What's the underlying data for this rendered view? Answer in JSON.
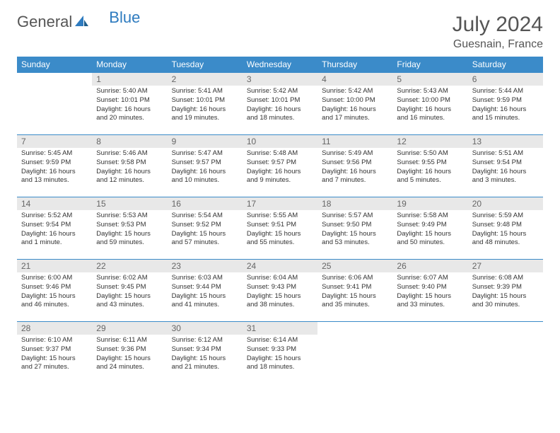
{
  "logo": {
    "part1": "General",
    "part2": "Blue"
  },
  "title": "July 2024",
  "subtitle": "Guesnain, France",
  "colors": {
    "header_bg": "#3b8bc9",
    "header_fg": "#ffffff",
    "daynum_bg": "#e8e8e8",
    "rule": "#3b8bc9",
    "text": "#333333",
    "logo_blue": "#2e7bbf"
  },
  "weekdays": [
    "Sunday",
    "Monday",
    "Tuesday",
    "Wednesday",
    "Thursday",
    "Friday",
    "Saturday"
  ],
  "weeks": [
    [
      {
        "n": "",
        "sunrise": "",
        "sunset": "",
        "daylight": ""
      },
      {
        "n": "1",
        "sunrise": "Sunrise: 5:40 AM",
        "sunset": "Sunset: 10:01 PM",
        "daylight": "Daylight: 16 hours and 20 minutes."
      },
      {
        "n": "2",
        "sunrise": "Sunrise: 5:41 AM",
        "sunset": "Sunset: 10:01 PM",
        "daylight": "Daylight: 16 hours and 19 minutes."
      },
      {
        "n": "3",
        "sunrise": "Sunrise: 5:42 AM",
        "sunset": "Sunset: 10:01 PM",
        "daylight": "Daylight: 16 hours and 18 minutes."
      },
      {
        "n": "4",
        "sunrise": "Sunrise: 5:42 AM",
        "sunset": "Sunset: 10:00 PM",
        "daylight": "Daylight: 16 hours and 17 minutes."
      },
      {
        "n": "5",
        "sunrise": "Sunrise: 5:43 AM",
        "sunset": "Sunset: 10:00 PM",
        "daylight": "Daylight: 16 hours and 16 minutes."
      },
      {
        "n": "6",
        "sunrise": "Sunrise: 5:44 AM",
        "sunset": "Sunset: 9:59 PM",
        "daylight": "Daylight: 16 hours and 15 minutes."
      }
    ],
    [
      {
        "n": "7",
        "sunrise": "Sunrise: 5:45 AM",
        "sunset": "Sunset: 9:59 PM",
        "daylight": "Daylight: 16 hours and 13 minutes."
      },
      {
        "n": "8",
        "sunrise": "Sunrise: 5:46 AM",
        "sunset": "Sunset: 9:58 PM",
        "daylight": "Daylight: 16 hours and 12 minutes."
      },
      {
        "n": "9",
        "sunrise": "Sunrise: 5:47 AM",
        "sunset": "Sunset: 9:57 PM",
        "daylight": "Daylight: 16 hours and 10 minutes."
      },
      {
        "n": "10",
        "sunrise": "Sunrise: 5:48 AM",
        "sunset": "Sunset: 9:57 PM",
        "daylight": "Daylight: 16 hours and 9 minutes."
      },
      {
        "n": "11",
        "sunrise": "Sunrise: 5:49 AM",
        "sunset": "Sunset: 9:56 PM",
        "daylight": "Daylight: 16 hours and 7 minutes."
      },
      {
        "n": "12",
        "sunrise": "Sunrise: 5:50 AM",
        "sunset": "Sunset: 9:55 PM",
        "daylight": "Daylight: 16 hours and 5 minutes."
      },
      {
        "n": "13",
        "sunrise": "Sunrise: 5:51 AM",
        "sunset": "Sunset: 9:54 PM",
        "daylight": "Daylight: 16 hours and 3 minutes."
      }
    ],
    [
      {
        "n": "14",
        "sunrise": "Sunrise: 5:52 AM",
        "sunset": "Sunset: 9:54 PM",
        "daylight": "Daylight: 16 hours and 1 minute."
      },
      {
        "n": "15",
        "sunrise": "Sunrise: 5:53 AM",
        "sunset": "Sunset: 9:53 PM",
        "daylight": "Daylight: 15 hours and 59 minutes."
      },
      {
        "n": "16",
        "sunrise": "Sunrise: 5:54 AM",
        "sunset": "Sunset: 9:52 PM",
        "daylight": "Daylight: 15 hours and 57 minutes."
      },
      {
        "n": "17",
        "sunrise": "Sunrise: 5:55 AM",
        "sunset": "Sunset: 9:51 PM",
        "daylight": "Daylight: 15 hours and 55 minutes."
      },
      {
        "n": "18",
        "sunrise": "Sunrise: 5:57 AM",
        "sunset": "Sunset: 9:50 PM",
        "daylight": "Daylight: 15 hours and 53 minutes."
      },
      {
        "n": "19",
        "sunrise": "Sunrise: 5:58 AM",
        "sunset": "Sunset: 9:49 PM",
        "daylight": "Daylight: 15 hours and 50 minutes."
      },
      {
        "n": "20",
        "sunrise": "Sunrise: 5:59 AM",
        "sunset": "Sunset: 9:48 PM",
        "daylight": "Daylight: 15 hours and 48 minutes."
      }
    ],
    [
      {
        "n": "21",
        "sunrise": "Sunrise: 6:00 AM",
        "sunset": "Sunset: 9:46 PM",
        "daylight": "Daylight: 15 hours and 46 minutes."
      },
      {
        "n": "22",
        "sunrise": "Sunrise: 6:02 AM",
        "sunset": "Sunset: 9:45 PM",
        "daylight": "Daylight: 15 hours and 43 minutes."
      },
      {
        "n": "23",
        "sunrise": "Sunrise: 6:03 AM",
        "sunset": "Sunset: 9:44 PM",
        "daylight": "Daylight: 15 hours and 41 minutes."
      },
      {
        "n": "24",
        "sunrise": "Sunrise: 6:04 AM",
        "sunset": "Sunset: 9:43 PM",
        "daylight": "Daylight: 15 hours and 38 minutes."
      },
      {
        "n": "25",
        "sunrise": "Sunrise: 6:06 AM",
        "sunset": "Sunset: 9:41 PM",
        "daylight": "Daylight: 15 hours and 35 minutes."
      },
      {
        "n": "26",
        "sunrise": "Sunrise: 6:07 AM",
        "sunset": "Sunset: 9:40 PM",
        "daylight": "Daylight: 15 hours and 33 minutes."
      },
      {
        "n": "27",
        "sunrise": "Sunrise: 6:08 AM",
        "sunset": "Sunset: 9:39 PM",
        "daylight": "Daylight: 15 hours and 30 minutes."
      }
    ],
    [
      {
        "n": "28",
        "sunrise": "Sunrise: 6:10 AM",
        "sunset": "Sunset: 9:37 PM",
        "daylight": "Daylight: 15 hours and 27 minutes."
      },
      {
        "n": "29",
        "sunrise": "Sunrise: 6:11 AM",
        "sunset": "Sunset: 9:36 PM",
        "daylight": "Daylight: 15 hours and 24 minutes."
      },
      {
        "n": "30",
        "sunrise": "Sunrise: 6:12 AM",
        "sunset": "Sunset: 9:34 PM",
        "daylight": "Daylight: 15 hours and 21 minutes."
      },
      {
        "n": "31",
        "sunrise": "Sunrise: 6:14 AM",
        "sunset": "Sunset: 9:33 PM",
        "daylight": "Daylight: 15 hours and 18 minutes."
      },
      {
        "n": "",
        "sunrise": "",
        "sunset": "",
        "daylight": ""
      },
      {
        "n": "",
        "sunrise": "",
        "sunset": "",
        "daylight": ""
      },
      {
        "n": "",
        "sunrise": "",
        "sunset": "",
        "daylight": ""
      }
    ]
  ]
}
